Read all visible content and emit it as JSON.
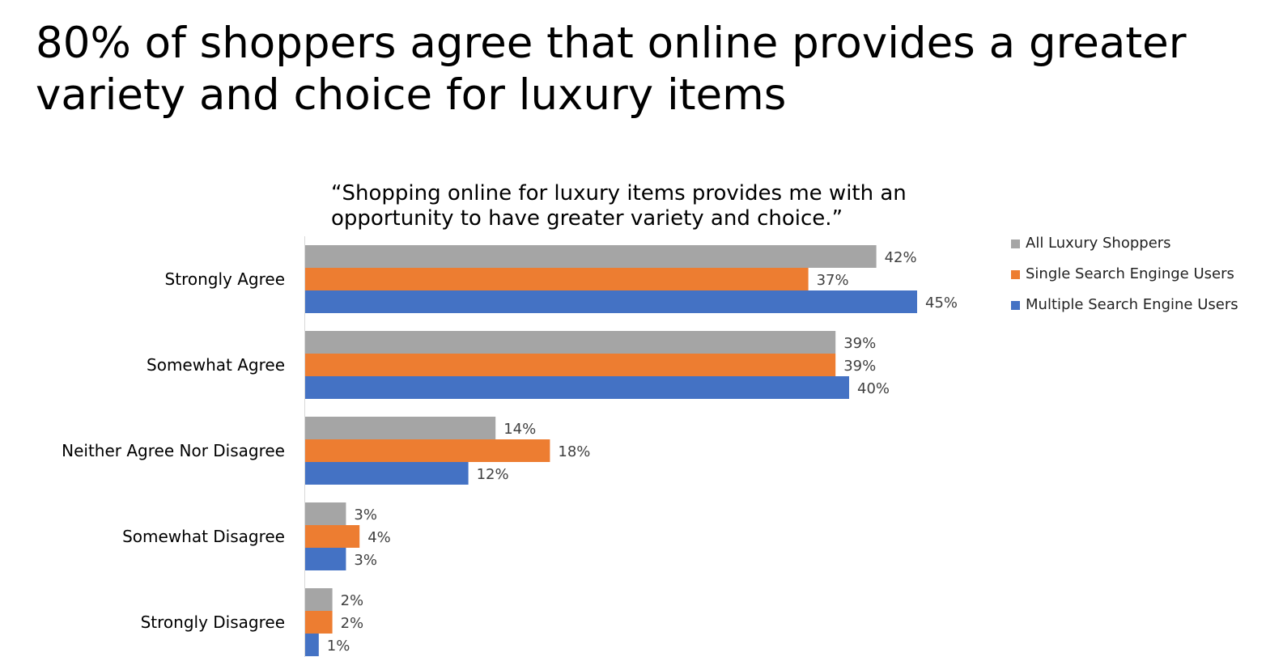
{
  "page": {
    "title": "80% of shoppers agree that online provides a greater variety and choice for luxury items"
  },
  "colors": {
    "all_luxury_shoppers": "#A5A5A5",
    "single_search_engine_users": "#ED7D31",
    "multiple_search_engine_users": "#4472C4",
    "axis": "#D9D9D9",
    "data_label": "#404040",
    "category_label": "#000000"
  },
  "chart_data": {
    "type": "bar",
    "orientation": "horizontal",
    "title": "“Shopping online for luxury items provides me with an opportunity to have  greater variety and choice.”",
    "categories": [
      "Strongly Agree",
      "Somewhat Agree",
      "Neither Agree Nor Disagree",
      "Somewhat Disagree",
      "Strongly Disagree"
    ],
    "series": [
      {
        "name": "All Luxury Shoppers",
        "values": [
          42,
          39,
          14,
          3,
          2
        ],
        "labels": [
          "42%",
          "39%",
          "14%",
          "3%",
          "2%"
        ]
      },
      {
        "name": "Single Search Enginge Users",
        "values": [
          37,
          39,
          18,
          4,
          2
        ],
        "labels": [
          "37%",
          "39%",
          "18%",
          "4%",
          "2%"
        ]
      },
      {
        "name": "Multiple Search Engine Users",
        "values": [
          45,
          40,
          12,
          3,
          1
        ],
        "labels": [
          "45%",
          "40%",
          "12%",
          "3%",
          "1%"
        ]
      }
    ],
    "value_unit": "%",
    "xlim": [
      0,
      50
    ],
    "grid": false,
    "legend": "right"
  }
}
